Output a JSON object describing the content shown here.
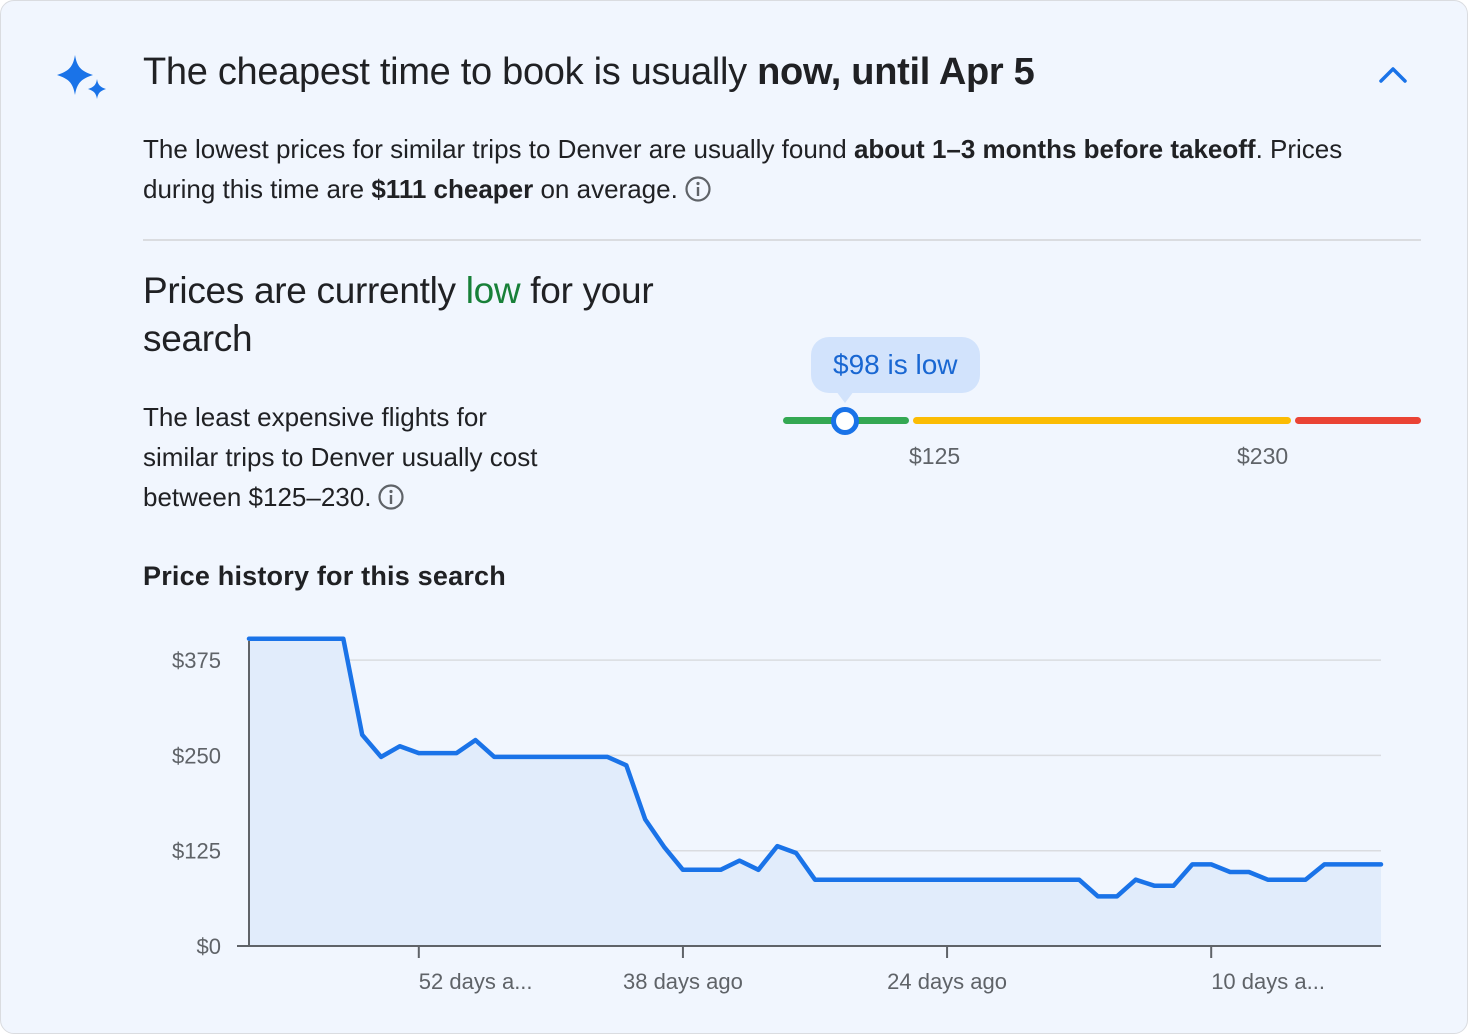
{
  "header": {
    "title_normal": "The cheapest time to book is usually ",
    "title_bold": "now, until Apr 5",
    "icon": "sparkle-icon",
    "collapse_icon": "chevron-up-icon"
  },
  "summary": {
    "part1": "The lowest prices for similar trips to Denver are usually found ",
    "bold1": "about 1–3 months before takeoff",
    "part2": ". Prices during this time are ",
    "bold2": "$111 cheaper",
    "part3": " on average."
  },
  "status": {
    "title_before": "Prices are currently ",
    "title_level": "low",
    "title_after": " for your search",
    "description": "The least expensive flights for similar trips to Denver usually cost between $125–230."
  },
  "gauge": {
    "current_label": "$98 is low",
    "current_value": 98,
    "low_threshold_label": "$125",
    "high_threshold_label": "$230",
    "colors": {
      "low": "#34a853",
      "typical": "#fbbc04",
      "high": "#ea4335",
      "accent": "#1a73e8"
    }
  },
  "history": {
    "title": "Price history for this search"
  },
  "chart_data": {
    "type": "area",
    "title": "Price history for this search",
    "xlabel": "",
    "ylabel": "",
    "ylim": [
      0,
      400
    ],
    "yticks": [
      0,
      125,
      250,
      375
    ],
    "ytick_labels": [
      "$0",
      "$125",
      "$250",
      "$375"
    ],
    "xlim": [
      60,
      0
    ],
    "xticks": [
      52,
      38,
      24,
      10
    ],
    "xtick_labels": [
      "52 days a...",
      "38 days ago",
      "24 days ago",
      "10 days a..."
    ],
    "grid": true,
    "color": "#1a73e8",
    "fill": "#e1ecfb",
    "x": [
      61,
      60,
      59,
      58,
      57,
      56,
      55,
      54,
      53,
      52,
      51,
      50,
      49,
      48,
      47,
      46,
      45,
      44,
      43,
      42,
      41,
      40,
      39,
      38,
      37,
      36,
      35,
      34,
      33,
      32,
      31,
      30,
      29,
      28,
      27,
      26,
      25,
      24,
      23,
      22,
      21,
      20,
      19,
      18,
      17,
      16,
      15,
      14,
      13,
      12,
      11,
      10,
      9,
      8,
      7,
      6,
      5,
      4,
      3,
      2,
      1
    ],
    "values": [
      403,
      403,
      403,
      403,
      403,
      403,
      277,
      248,
      262,
      253,
      253,
      253,
      270,
      248,
      248,
      248,
      248,
      248,
      248,
      248,
      237,
      166,
      130,
      100,
      100,
      100,
      112,
      100,
      131,
      122,
      87,
      87,
      87,
      87,
      87,
      87,
      87,
      87,
      87,
      87,
      87,
      87,
      87,
      87,
      87,
      65,
      65,
      87,
      79,
      79,
      107,
      107,
      97,
      97,
      87,
      87,
      87,
      107,
      107,
      107,
      107
    ]
  }
}
